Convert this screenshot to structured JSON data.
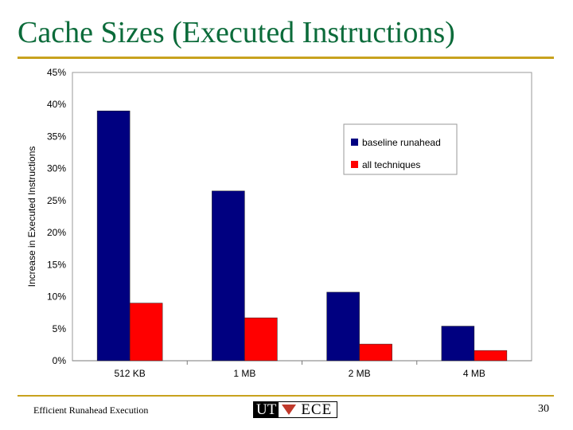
{
  "slide": {
    "title": "Cache Sizes (Executed Instructions)",
    "footer": "Efficient Runahead Execution",
    "page_number": "30",
    "logo": {
      "left": "UT",
      "right": "ECE"
    }
  },
  "colors": {
    "title": "#0b6b3a",
    "rule": "#c8a21e",
    "series_baseline": "#000080",
    "series_all": "#ff0000"
  },
  "chart_data": {
    "type": "bar",
    "title": "",
    "xlabel": "",
    "ylabel": "Increase in Executed Instructions",
    "categories": [
      "512 KB",
      "1 MB",
      "2 MB",
      "4 MB"
    ],
    "series": [
      {
        "name": "baseline runahead",
        "values": [
          39,
          26.5,
          10.7,
          5.4
        ]
      },
      {
        "name": "all techniques",
        "values": [
          9,
          6.7,
          2.6,
          1.6
        ]
      }
    ],
    "ylim": [
      0,
      45
    ],
    "yticks": [
      "0%",
      "5%",
      "10%",
      "15%",
      "20%",
      "25%",
      "30%",
      "35%",
      "40%",
      "45%"
    ],
    "grid": false,
    "legend_position": "right"
  }
}
